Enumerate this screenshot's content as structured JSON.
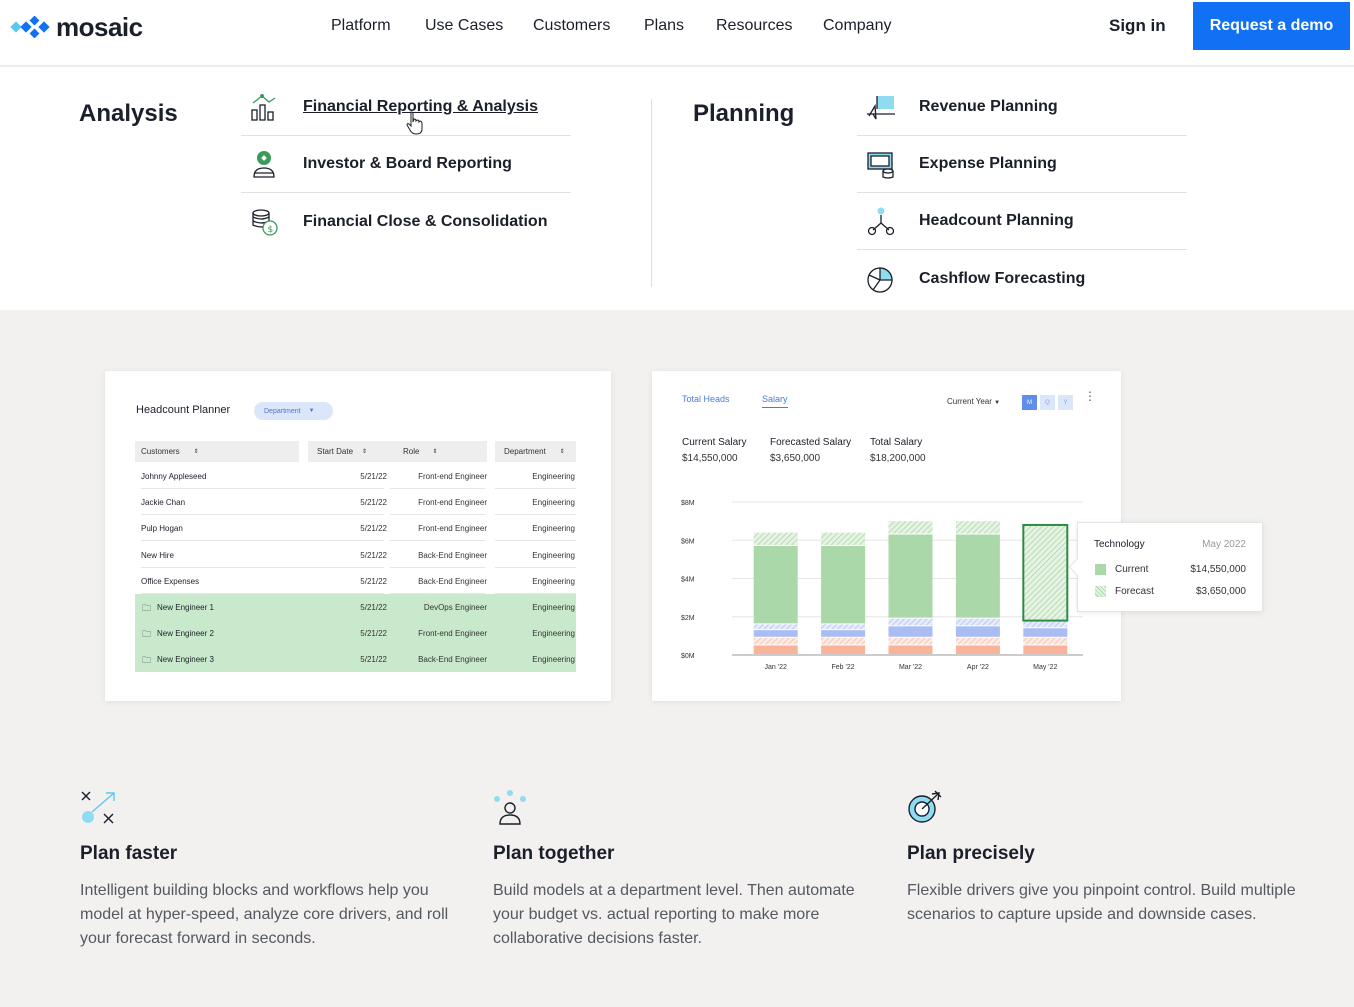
{
  "header": {
    "logo_text": "mosaic",
    "nav": [
      "Platform",
      "Use Cases",
      "Customers",
      "Plans",
      "Resources",
      "Company"
    ],
    "sign_in": "Sign in",
    "request_demo": "Request a demo",
    "colors": {
      "accent": "#1171f5",
      "logo_blue": "#1171f5",
      "logo_cyan": "#5cc8f0"
    }
  },
  "mega_menu": {
    "analysis": {
      "heading": "Analysis",
      "items": [
        {
          "label": "Financial Reporting & Analysis",
          "icon": "bar-chart-icon"
        },
        {
          "label": "Investor & Board Reporting",
          "icon": "investor-icon"
        },
        {
          "label": "Financial Close & Consolidation",
          "icon": "coins-icon"
        }
      ]
    },
    "planning": {
      "heading": "Planning",
      "items": [
        {
          "label": "Revenue Planning",
          "icon": "revenue-icon"
        },
        {
          "label": "Expense Planning",
          "icon": "expense-icon"
        },
        {
          "label": "Headcount Planning",
          "icon": "headcount-icon"
        },
        {
          "label": "Cashflow Forecasting",
          "icon": "pie-icon"
        }
      ]
    }
  },
  "headcount_planner": {
    "title": "Headcount Planner",
    "dept_chip": "Department",
    "columns": [
      "Customers",
      "Start Date",
      "Role",
      "Department"
    ],
    "rows": [
      {
        "name": "Johnny Appleseed",
        "date": "5/21/22",
        "role": "Front-end Engineer",
        "dept": "Engineering"
      },
      {
        "name": "Jackie Chan",
        "date": "5/21/22",
        "role": "Front-end Engineer",
        "dept": "Engineering"
      },
      {
        "name": "Pulp Hogan",
        "date": "5/21/22",
        "role": "Front-end Engineer",
        "dept": "Engineering"
      },
      {
        "name": "New Hire",
        "date": "5/21/22",
        "role": "Back-End Engineer",
        "dept": "Engineering"
      },
      {
        "name": "Office Expenses",
        "date": "5/21/22",
        "role": "Back-End Engineer",
        "dept": "Engineering"
      },
      {
        "name": "New Engineer 1",
        "date": "5/21/22",
        "role": "DevOps Engineer",
        "dept": "Engineering"
      },
      {
        "name": "New Engineer 2",
        "date": "5/21/22",
        "role": "Front-end Engineer",
        "dept": "Engineering"
      },
      {
        "name": "New Engineer 3",
        "date": "5/21/22",
        "role": "Back-End Engineer",
        "dept": "Engineering"
      }
    ]
  },
  "salary_card": {
    "tabs": [
      "Total Heads",
      "Salary"
    ],
    "period": "Current Year",
    "granularity": [
      "M",
      "Q",
      "Y"
    ],
    "stats": [
      {
        "label": "Current Salary",
        "value": "$14,550,000"
      },
      {
        "label": "Forecasted Salary",
        "value": "$3,650,000"
      },
      {
        "label": "Total Salary",
        "value": "$18,200,000"
      }
    ],
    "tooltip": {
      "title": "Technology",
      "date": "May 2022",
      "rows": [
        {
          "label": "Current",
          "value": "$14,550,000"
        },
        {
          "label": "Forecast",
          "value": "$3,650,000"
        }
      ]
    }
  },
  "chart_data": {
    "type": "bar",
    "categories": [
      "Jan '22",
      "Feb '22",
      "Mar '22",
      "Apr '22",
      "May '22"
    ],
    "yticks": [
      "$0M",
      "$2M",
      "$4M",
      "$6M",
      "$8M"
    ],
    "ylim": [
      0,
      8
    ],
    "stacked": true,
    "series": [
      {
        "name": "Orange",
        "values": [
          0.5,
          0.5,
          0.5,
          0.5,
          0.5
        ],
        "color": "#f9b39a"
      },
      {
        "name": "Orange forecast",
        "values": [
          0.4,
          0.4,
          0.4,
          0.4,
          0.4
        ],
        "color": "#f9d2c4"
      },
      {
        "name": "Blue",
        "values": [
          0.4,
          0.4,
          0.6,
          0.6,
          0.5
        ],
        "color": "#aabdf2"
      },
      {
        "name": "Blue forecast",
        "values": [
          0.3,
          0.3,
          0.4,
          0.4,
          0.4
        ],
        "color": "#cfdaf7"
      },
      {
        "name": "Green",
        "values": [
          4.1,
          4.1,
          4.4,
          4.4,
          0
        ],
        "color": "#abd8a8"
      },
      {
        "name": "Green forecast",
        "values": [
          0.7,
          0.7,
          0.7,
          0.7,
          5.0
        ],
        "color": "#d5ecd2"
      }
    ],
    "highlight": "May '22"
  },
  "features": [
    {
      "title": "Plan faster",
      "body": "Intelligent building blocks and workflows help you model at hyper-speed, analyze core drivers, and roll your forecast forward in seconds.",
      "icon": "plan-faster-icon"
    },
    {
      "title": "Plan together",
      "body": "Build models at a department level. Then automate your budget vs. actual reporting to make more collaborative decisions faster.",
      "icon": "plan-together-icon"
    },
    {
      "title": "Plan precisely",
      "body": "Flexible drivers give you pinpoint control. Build multiple scenarios to capture upside and downside cases.",
      "icon": "plan-precisely-icon"
    }
  ]
}
